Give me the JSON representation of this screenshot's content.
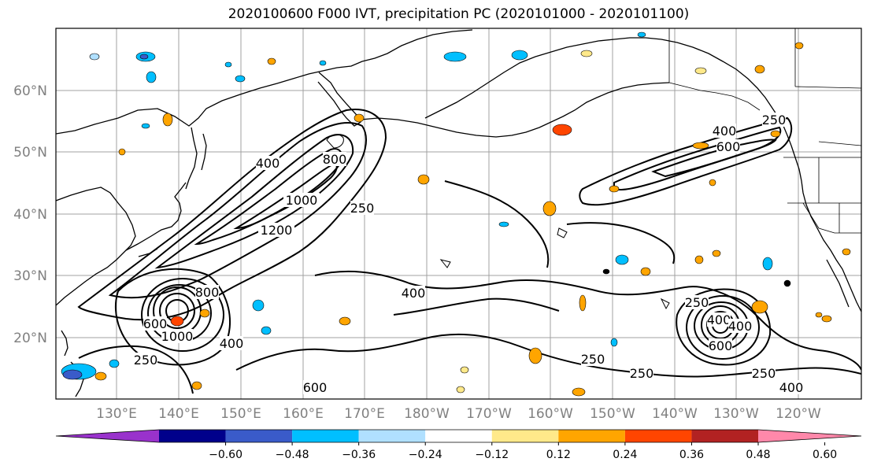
{
  "title": "2020100600 F000 IVT, precipitation PC (2020101000 - 2020101100)",
  "lat_labels": [
    "60°N",
    "50°N",
    "40°N",
    "30°N",
    "20°N"
  ],
  "lon_labels": [
    "130°E",
    "140°E",
    "150°E",
    "160°E",
    "170°E",
    "180°W",
    "170°W",
    "160°W",
    "150°W",
    "140°W",
    "130°W",
    "120°W"
  ],
  "colorbar": {
    "colors": [
      "#9932cc",
      "#00008b",
      "#3a5bc9",
      "#00bfff",
      "#b0e0ff",
      "#ffffff",
      "#ffe98a",
      "#ffa500",
      "#ff4500",
      "#b22222",
      "#ff88aa"
    ],
    "ticks": [
      "−0.60",
      "−0.48",
      "−0.36",
      "−0.24",
      "−0.12",
      "0.12",
      "0.24",
      "0.36",
      "0.48",
      "0.60"
    ]
  },
  "ivt_contour_labels": [
    "400",
    "250",
    "800",
    "1000",
    "1200",
    "250",
    "400",
    "600",
    "800",
    "1000",
    "400",
    "250",
    "250",
    "400",
    "600",
    "250",
    "400",
    "600",
    "400",
    "250",
    "250",
    "600",
    "400"
  ]
}
